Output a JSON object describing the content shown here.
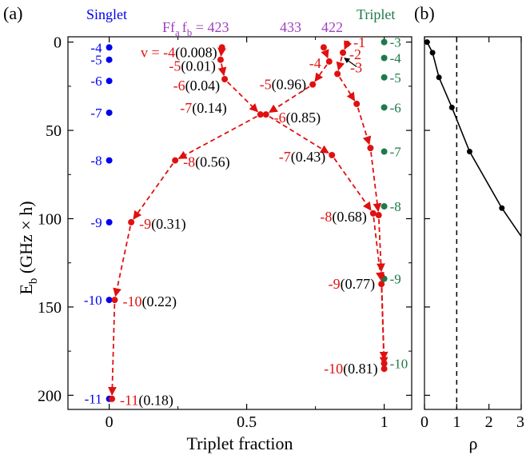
{
  "colors": {
    "singlet": "#0000ee",
    "triplet": "#1e7a4a",
    "path": "#e01010",
    "ff_label": "#a040c0",
    "axis": "#000000"
  },
  "chart_data": [
    {
      "panel_label": "(a)",
      "type": "scatter",
      "xlabel": "Triplet fraction",
      "ylabel_main": "E",
      "ylabel_sub": "b",
      "ylabel_rest": "(GHz × h)",
      "xlim": [
        -0.15,
        1.1
      ],
      "ylim": [
        208,
        -3
      ],
      "y_inverted": true,
      "xticks": [
        0,
        0.5,
        1
      ],
      "xtick_labels": [
        "0",
        "0.5",
        "1"
      ],
      "yticks": [
        0,
        50,
        100,
        150,
        200
      ],
      "ytick_labels": [
        "0",
        "50",
        "100",
        "150",
        "200"
      ],
      "singlet_title": "Singlet",
      "triplet_title": "Triplet",
      "ff_label": {
        "prefix": "Ff",
        "a": "a",
        "mid": "f",
        "b": "b",
        "eq": " = 423"
      },
      "ff_extra": [
        "433",
        "422"
      ],
      "v_prefix": "v = ",
      "singlet_levels": [
        {
          "label": "-4",
          "E": 3
        },
        {
          "label": "-5",
          "E": 10
        },
        {
          "label": "-6",
          "E": 22
        },
        {
          "label": "-7",
          "E": 40
        },
        {
          "label": "-8",
          "E": 67
        },
        {
          "label": "-9",
          "E": 102
        },
        {
          "label": "-10",
          "E": 146
        },
        {
          "label": "-11",
          "E": 202
        }
      ],
      "triplet_levels": [
        {
          "label": "-3",
          "E": 0
        },
        {
          "label": "-4",
          "E": 9
        },
        {
          "label": "-5",
          "E": 20
        },
        {
          "label": "-6",
          "E": 37
        },
        {
          "label": "-7",
          "E": 62
        },
        {
          "label": "-8",
          "E": 93
        },
        {
          "label": "-9",
          "E": 134
        },
        {
          "label": "-10",
          "E": 182
        }
      ],
      "series": [
        {
          "name": "423",
          "points": [
            {
              "v": "-4",
              "frac": 0.41,
              "E": 3,
              "pct": "(0.008)"
            },
            {
              "v": "-5",
              "frac": 0.405,
              "E": 10,
              "pct": "(0.01)"
            },
            {
              "v": "-6",
              "frac": 0.42,
              "E": 21,
              "pct": "(0.04)"
            },
            {
              "v": "-7",
              "frac": 0.55,
              "E": 41,
              "pct": "(0.14)"
            },
            {
              "v": "-8",
              "frac": 0.24,
              "E": 67,
              "pct": "(0.56)"
            },
            {
              "v": "-9",
              "frac": 0.08,
              "E": 102,
              "pct": "(0.31)"
            },
            {
              "v": "-10",
              "frac": 0.02,
              "E": 146,
              "pct": "(0.22)"
            },
            {
              "v": "-11",
              "frac": 0.01,
              "E": 202,
              "pct": "(0.18)"
            }
          ]
        },
        {
          "name": "433",
          "points": [
            {
              "v": "-3",
              "frac": 0.78,
              "E": 3,
              "pct": ""
            },
            {
              "v": "-4",
              "frac": 0.8,
              "E": 11,
              "pct": ""
            },
            {
              "v": "-5",
              "frac": 0.74,
              "E": 24,
              "pct": "(0.96)"
            },
            {
              "v": "-6",
              "frac": 0.57,
              "E": 41,
              "pct": "(0.85)"
            },
            {
              "v": "-7",
              "frac": 0.81,
              "E": 64,
              "pct": "(0.43)"
            },
            {
              "v": "-8",
              "frac": 0.96,
              "E": 97,
              "pct": "(0.68)"
            },
            {
              "v": "-9",
              "frac": 0.99,
              "E": 137,
              "pct": "(0.77)"
            },
            {
              "v": "-10",
              "frac": 1.0,
              "E": 185,
              "pct": "(0.81)"
            }
          ]
        },
        {
          "name": "422",
          "points": [
            {
              "v": "-1",
              "frac": 0.865,
              "E": 1,
              "pct": ""
            },
            {
              "v": "-2",
              "frac": 0.85,
              "E": 6,
              "pct": ""
            },
            {
              "v": "-3",
              "frac": 0.83,
              "E": 18,
              "pct": ""
            },
            {
              "v": "",
              "frac": 0.9,
              "E": 35,
              "pct": ""
            },
            {
              "v": "",
              "frac": 0.95,
              "E": 60,
              "pct": ""
            },
            {
              "v": "",
              "frac": 0.98,
              "E": 98,
              "pct": ""
            },
            {
              "v": "",
              "frac": 0.99,
              "E": 132,
              "pct": ""
            },
            {
              "v": "",
              "frac": 1.0,
              "E": 182,
              "pct": ""
            }
          ]
        }
      ]
    },
    {
      "panel_label": "(b)",
      "type": "line",
      "xlabel": "ρ",
      "xlim": [
        0,
        3
      ],
      "ylim": [
        208,
        -3
      ],
      "xticks": [
        0,
        1,
        2,
        3
      ],
      "xtick_labels": [
        "0",
        "1",
        "2",
        "3"
      ],
      "vline_x": 1,
      "points": [
        {
          "x": 0.08,
          "E": 0
        },
        {
          "x": 0.25,
          "E": 6
        },
        {
          "x": 0.45,
          "E": 20
        },
        {
          "x": 0.85,
          "E": 37
        },
        {
          "x": 1.4,
          "E": 62
        },
        {
          "x": 2.4,
          "E": 94
        }
      ],
      "curve_end": {
        "x": 3.0,
        "E": 110
      }
    }
  ]
}
